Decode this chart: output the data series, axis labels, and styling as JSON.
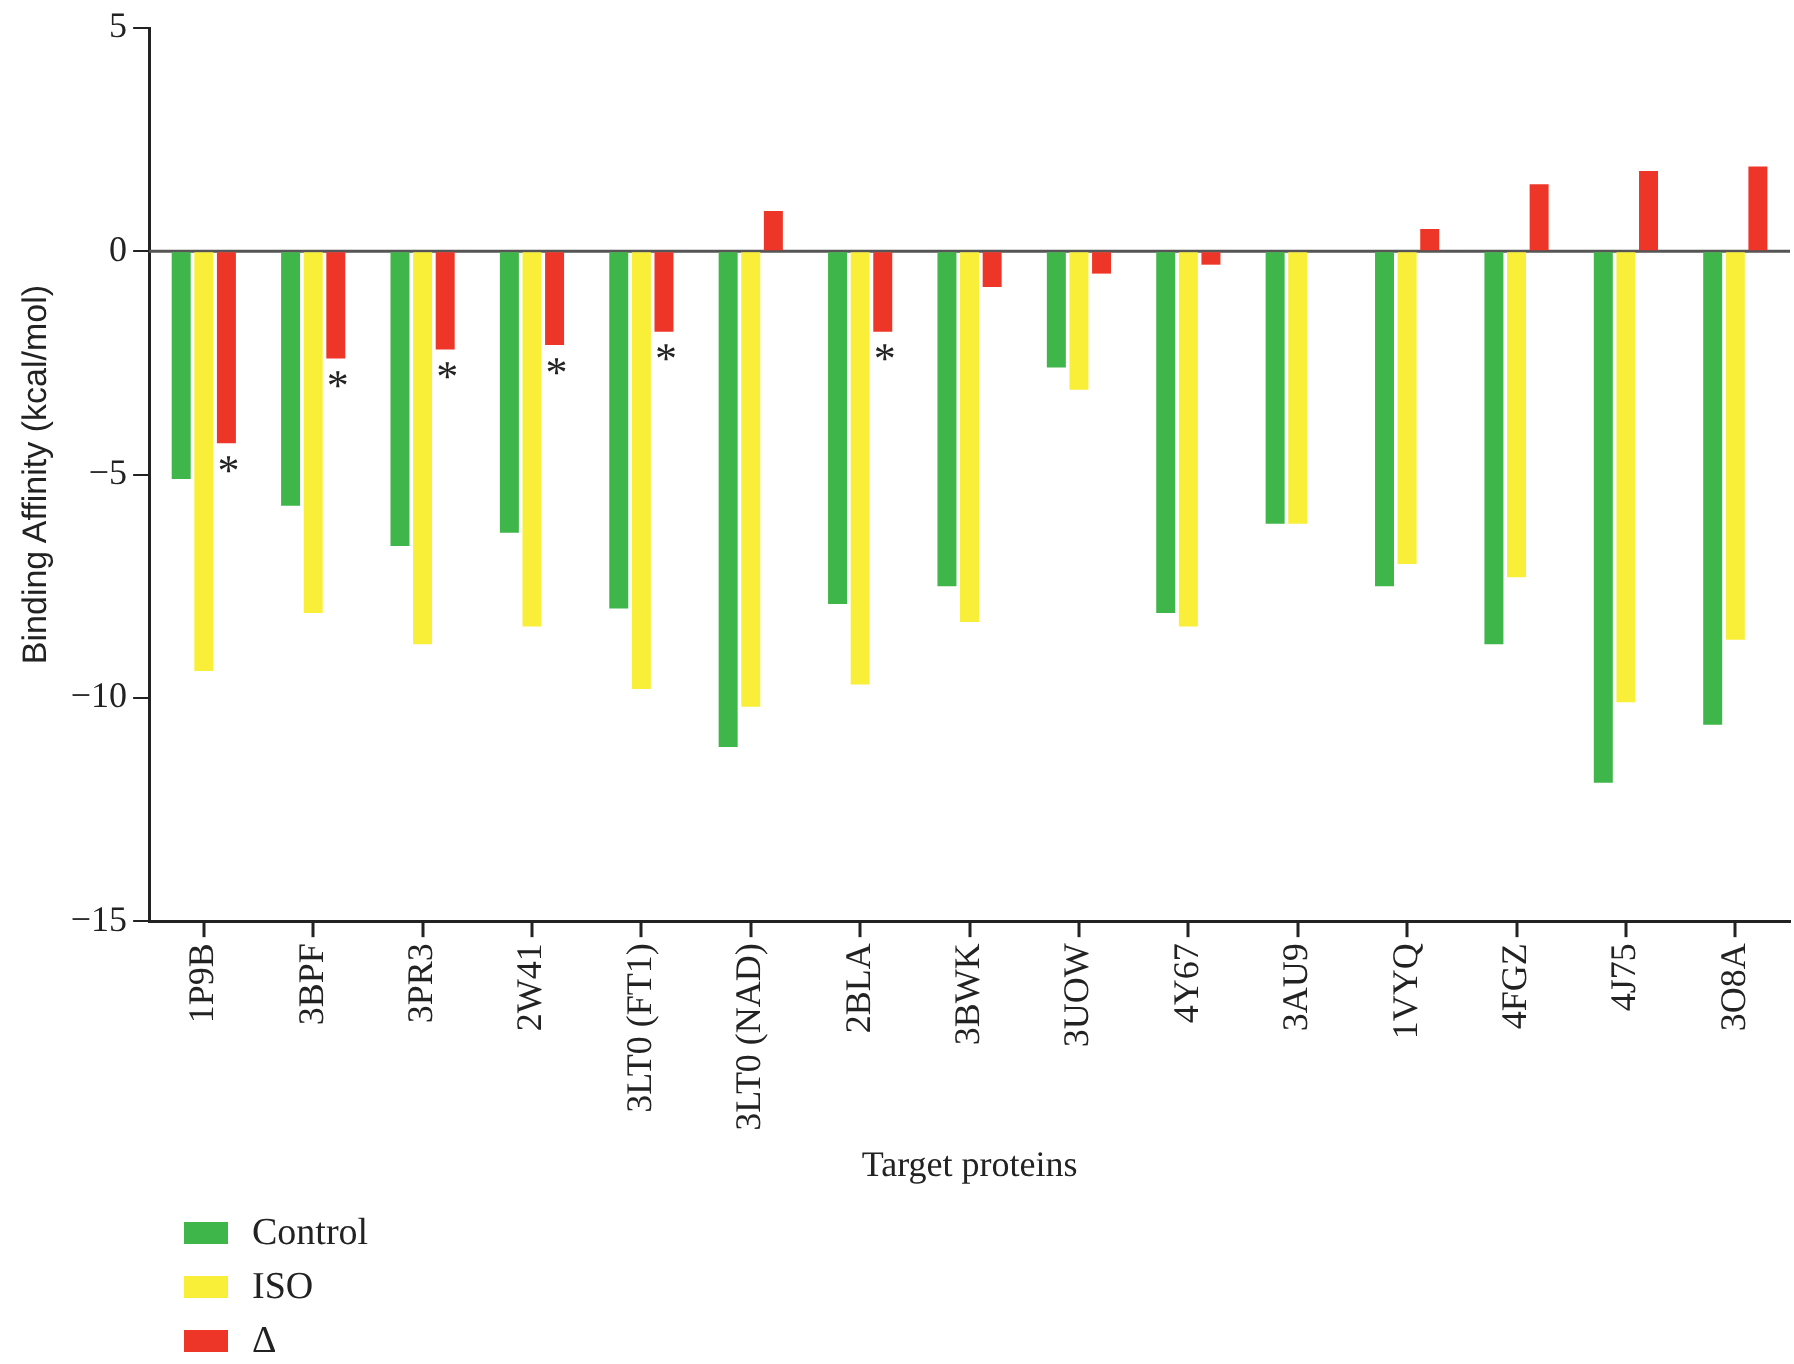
{
  "chart_data": {
    "type": "bar",
    "xlabel": "Target proteins",
    "ylabel": "Binding Affinity (kcal/mol)",
    "categories": [
      "1P9B",
      "3BPF",
      "3PR3",
      "2W41",
      "3LT0 (FT1)",
      "3LT0 (NAD)",
      "2BLA",
      "3BWK",
      "3UOW",
      "4Y67",
      "3AU9",
      "1VYQ",
      "4FGZ",
      "4J75",
      "3O8A"
    ],
    "series": [
      {
        "name": "Control",
        "color": "#3fb64a",
        "values": [
          -5.1,
          -5.7,
          -6.6,
          -6.3,
          -8.0,
          -11.1,
          -7.9,
          -7.5,
          -2.6,
          -8.1,
          -6.1,
          -7.5,
          -8.8,
          -11.9,
          -10.6
        ]
      },
      {
        "name": "ISO",
        "color": "#f9ef38",
        "values": [
          -9.4,
          -8.1,
          -8.8,
          -8.4,
          -9.8,
          -10.2,
          -9.7,
          -8.3,
          -3.1,
          -8.4,
          -6.1,
          -7.0,
          -7.3,
          -10.1,
          -8.7
        ]
      },
      {
        "name": "Δ",
        "color": "#ee3628",
        "values": [
          -4.3,
          -2.4,
          -2.2,
          -2.1,
          -1.8,
          0.9,
          -1.8,
          -0.8,
          -0.5,
          -0.3,
          0,
          0.5,
          1.5,
          1.8,
          1.9
        ]
      }
    ],
    "ref_lines": [
      {
        "axis": "y",
        "value": 0,
        "color": "#555555"
      }
    ],
    "ylim": [
      -15,
      5
    ],
    "yticks": [
      -15,
      -10,
      -5,
      0,
      5
    ],
    "grid": false,
    "legend": "bottom left",
    "annotations": [
      {
        "text": "*",
        "x": "1P9B",
        "y": -4.3
      },
      {
        "text": "*",
        "x": "3BPF",
        "y": -2.4
      },
      {
        "text": "*",
        "x": "3PR3",
        "y": -2.2
      },
      {
        "text": "*",
        "x": "2W41",
        "y": -2.1
      },
      {
        "text": "*",
        "x": "3LT0 (FT1)",
        "y": -1.8
      },
      {
        "text": "*",
        "x": "2BLA",
        "y": -1.8
      }
    ]
  }
}
